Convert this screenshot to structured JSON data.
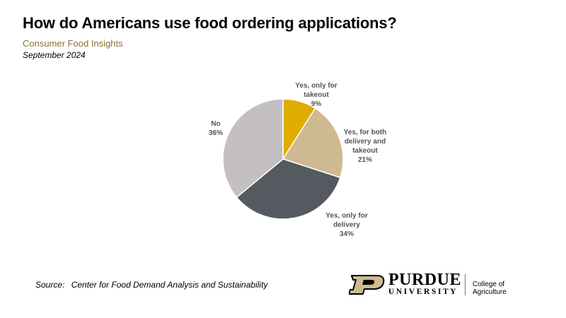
{
  "header": {
    "title": "How do Americans use food ordering applications?",
    "subtitle": "Consumer Food Insights",
    "date": "September 2024"
  },
  "footer": {
    "source_label": "Source:",
    "source_text": "Center for Food Demand Analysis and Sustainability"
  },
  "logo": {
    "wordmark": "PURDUE",
    "university": "UNIVERSITY",
    "college": "College of Agriculture"
  },
  "colors": {
    "subtitle": "#8e6f3e",
    "takeout": "#dfad00",
    "both": "#cfb991",
    "delivery": "#555960",
    "no": "#c4bfc0"
  },
  "chart_data": {
    "type": "pie",
    "start": "12 o'clock",
    "direction": "clockwise",
    "slices": [
      {
        "lines": [
          "Yes, only for",
          "takeout",
          "9%"
        ],
        "value": 9,
        "color": "#dfad00"
      },
      {
        "lines": [
          "Yes, for both",
          "delivery and",
          "takeout",
          "21%"
        ],
        "value": 21,
        "color": "#cfb991"
      },
      {
        "lines": [
          "Yes, only for",
          "delivery",
          "34%"
        ],
        "value": 34,
        "color": "#555960"
      },
      {
        "lines": [
          "No",
          "36%"
        ],
        "value": 36,
        "color": "#c4bfc0"
      }
    ]
  }
}
